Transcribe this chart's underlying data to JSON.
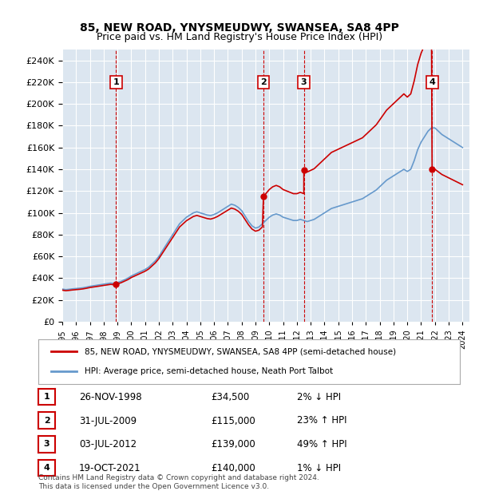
{
  "title": "85, NEW ROAD, YNYSMEUDWY, SWANSEA, SA8 4PP",
  "subtitle": "Price paid vs. HM Land Registry's House Price Index (HPI)",
  "hpi_color": "#6699cc",
  "price_color": "#cc0000",
  "background_color": "#dce6f0",
  "plot_bg_color": "#dce6f0",
  "ylim": [
    0,
    250000
  ],
  "yticks": [
    0,
    20000,
    40000,
    60000,
    80000,
    100000,
    120000,
    140000,
    160000,
    180000,
    200000,
    220000,
    240000
  ],
  "sale_dates": [
    "1998-11-26",
    "2009-07-31",
    "2012-07-03",
    "2021-10-19"
  ],
  "sale_prices": [
    34500,
    115000,
    139000,
    140000
  ],
  "sale_labels": [
    "1",
    "2",
    "3",
    "4"
  ],
  "legend_line1": "85, NEW ROAD, YNYSMEUDWY, SWANSEA, SA8 4PP (semi-detached house)",
  "legend_line2": "HPI: Average price, semi-detached house, Neath Port Talbot",
  "table_data": [
    [
      "1",
      "26-NOV-1998",
      "£34,500",
      "2% ↓ HPI"
    ],
    [
      "2",
      "31-JUL-2009",
      "£115,000",
      "23% ↑ HPI"
    ],
    [
      "3",
      "03-JUL-2012",
      "£139,000",
      "49% ↑ HPI"
    ],
    [
      "4",
      "19-OCT-2021",
      "£140,000",
      "1% ↓ HPI"
    ]
  ],
  "footnote": "Contains HM Land Registry data © Crown copyright and database right 2024.\nThis data is licensed under the Open Government Licence v3.0.",
  "hpi_data": {
    "years": [
      1995,
      1995.25,
      1995.5,
      1995.75,
      1996,
      1996.25,
      1996.5,
      1996.75,
      1997,
      1997.25,
      1997.5,
      1997.75,
      1998,
      1998.25,
      1998.5,
      1998.75,
      1999,
      1999.25,
      1999.5,
      1999.75,
      2000,
      2000.25,
      2000.5,
      2000.75,
      2001,
      2001.25,
      2001.5,
      2001.75,
      2002,
      2002.25,
      2002.5,
      2002.75,
      2003,
      2003.25,
      2003.5,
      2003.75,
      2004,
      2004.25,
      2004.5,
      2004.75,
      2005,
      2005.25,
      2005.5,
      2005.75,
      2006,
      2006.25,
      2006.5,
      2006.75,
      2007,
      2007.25,
      2007.5,
      2007.75,
      2008,
      2008.25,
      2008.5,
      2008.75,
      2009,
      2009.25,
      2009.5,
      2009.75,
      2010,
      2010.25,
      2010.5,
      2010.75,
      2011,
      2011.25,
      2011.5,
      2011.75,
      2012,
      2012.25,
      2012.5,
      2012.75,
      2013,
      2013.25,
      2013.5,
      2013.75,
      2014,
      2014.25,
      2014.5,
      2014.75,
      2015,
      2015.25,
      2015.5,
      2015.75,
      2016,
      2016.25,
      2016.5,
      2016.75,
      2017,
      2017.25,
      2017.5,
      2017.75,
      2018,
      2018.25,
      2018.5,
      2018.75,
      2019,
      2019.25,
      2019.5,
      2019.75,
      2020,
      2020.25,
      2020.5,
      2020.75,
      2021,
      2021.25,
      2021.5,
      2021.75,
      2022,
      2022.25,
      2022.5,
      2022.75,
      2023,
      2023.25,
      2023.5,
      2023.75,
      2024
    ],
    "values": [
      30000,
      29500,
      29800,
      30200,
      30500,
      30800,
      31200,
      31800,
      32500,
      33000,
      33500,
      34000,
      34500,
      35000,
      35500,
      35200,
      36000,
      37000,
      38500,
      40000,
      42000,
      43500,
      45000,
      46500,
      48000,
      50000,
      53000,
      56000,
      60000,
      65000,
      70000,
      75000,
      80000,
      85000,
      90000,
      93000,
      96000,
      98000,
      100000,
      101000,
      100000,
      99000,
      98000,
      97500,
      98500,
      100000,
      102000,
      104000,
      106000,
      108000,
      107000,
      105000,
      102000,
      97000,
      92000,
      88000,
      86000,
      87000,
      90000,
      93000,
      96000,
      98000,
      99000,
      98000,
      96000,
      95000,
      94000,
      93000,
      93000,
      94000,
      93000,
      92000,
      93000,
      94000,
      96000,
      98000,
      100000,
      102000,
      104000,
      105000,
      106000,
      107000,
      108000,
      109000,
      110000,
      111000,
      112000,
      113000,
      115000,
      117000,
      119000,
      121000,
      124000,
      127000,
      130000,
      132000,
      134000,
      136000,
      138000,
      140000,
      138000,
      140000,
      148000,
      158000,
      165000,
      170000,
      175000,
      178000,
      178000,
      175000,
      172000,
      170000,
      168000,
      166000,
      164000,
      162000,
      160000
    ]
  }
}
